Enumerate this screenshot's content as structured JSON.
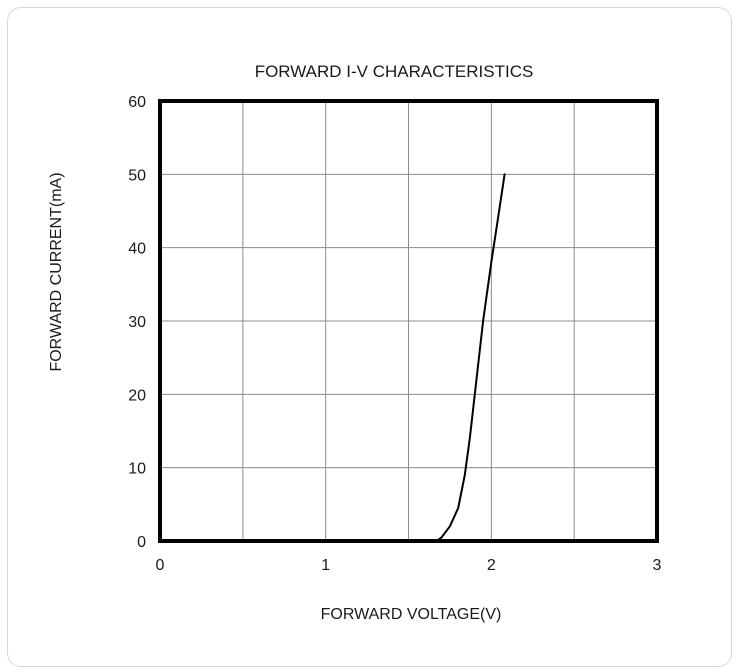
{
  "chart_data": {
    "type": "line",
    "title": "FORWARD I-V CHARACTERISTICS",
    "xlabel": "FORWARD VOLTAGE(V)",
    "ylabel": "FORWARD CURRENT(mA)",
    "xlim": [
      0,
      3
    ],
    "ylim": [
      0,
      60
    ],
    "x_ticks": [
      0,
      1,
      2,
      3
    ],
    "y_ticks": [
      0,
      10,
      20,
      30,
      40,
      50,
      60
    ],
    "grid": true,
    "series": [
      {
        "color": "#000000",
        "points": [
          [
            1.67,
            0
          ],
          [
            1.7,
            0.5
          ],
          [
            1.75,
            2
          ],
          [
            1.8,
            4.5
          ],
          [
            1.84,
            9
          ],
          [
            1.87,
            14
          ],
          [
            1.9,
            20
          ],
          [
            1.95,
            30
          ],
          [
            2.0,
            38
          ],
          [
            2.04,
            44
          ],
          [
            2.08,
            50
          ]
        ]
      }
    ]
  }
}
